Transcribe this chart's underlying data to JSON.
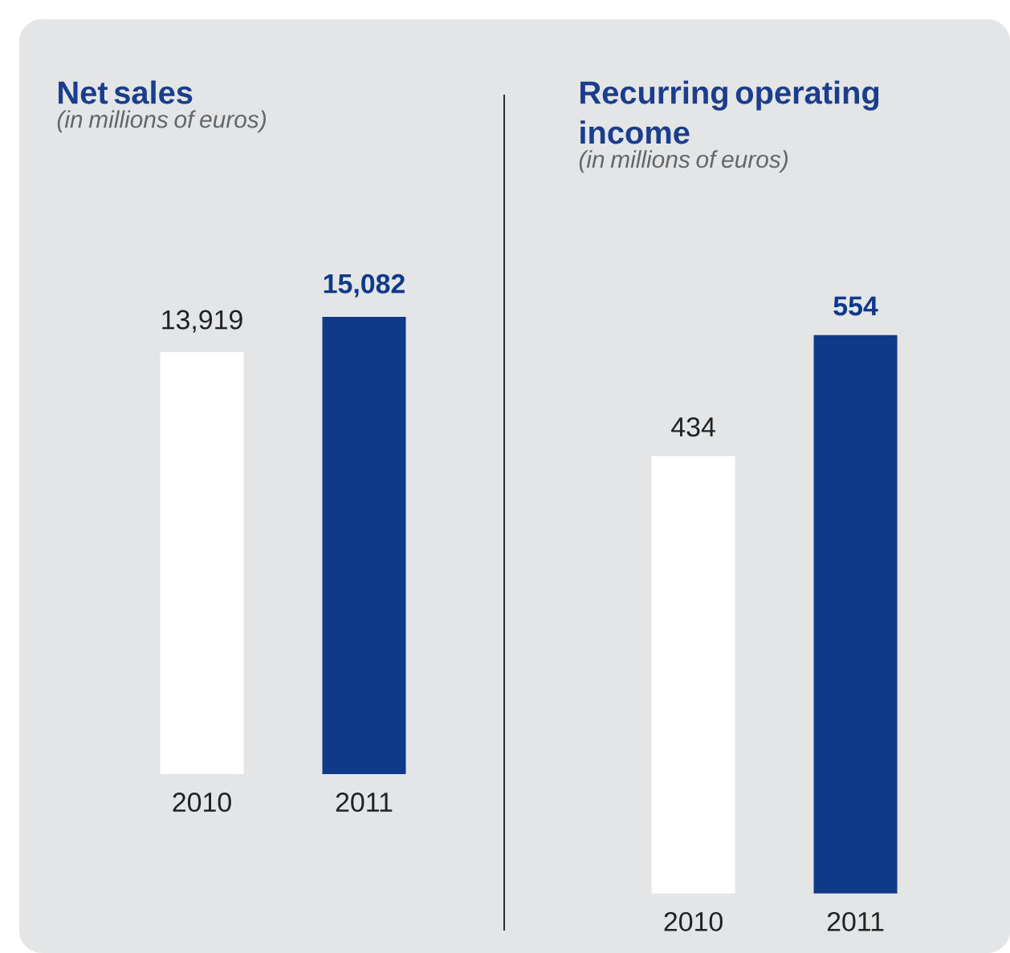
{
  "chart_data": [
    {
      "type": "bar",
      "title": "Net sales",
      "subtitle": "(in millions of euros)",
      "categories": [
        "2010",
        "2011"
      ],
      "values": [
        13919,
        15082
      ],
      "colors": [
        "#ffffff",
        "#0f3a8a"
      ],
      "value_labels": [
        "13,919",
        "15,082"
      ]
    },
    {
      "type": "bar",
      "title": "Recurring operating income",
      "subtitle": "(in millions of euros)",
      "categories": [
        "2010",
        "2011"
      ],
      "values": [
        434,
        554
      ],
      "colors": [
        "#ffffff",
        "#0f3a8a"
      ],
      "value_labels": [
        "434",
        "554"
      ]
    }
  ]
}
